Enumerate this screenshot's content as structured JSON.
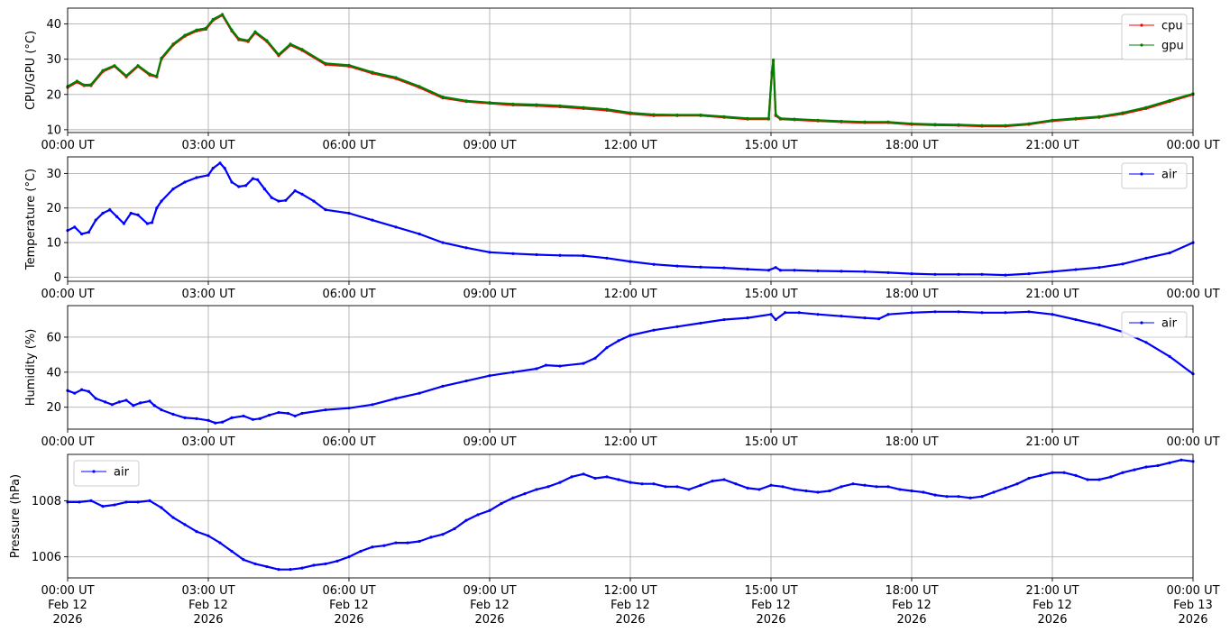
{
  "chart_data": [
    {
      "type": "line",
      "ylabel": "CPU/GPU (°C)",
      "ylim": [
        9.2,
        44.5
      ],
      "yticks": [
        10,
        20,
        30,
        40
      ],
      "xlim": [
        0,
        24
      ],
      "xticks": [
        0,
        3,
        6,
        9,
        12,
        15,
        18,
        21,
        24
      ],
      "xtick_labels": [
        "00:00 UT",
        "03:00 UT",
        "06:00 UT",
        "09:00 UT",
        "12:00 UT",
        "15:00 UT",
        "18:00 UT",
        "21:00 UT",
        "00:00 UT"
      ],
      "grid": true,
      "legend_loc": "upper right",
      "series": [
        {
          "name": "cpu",
          "color": "#ff0000",
          "x": [
            0,
            0.2,
            0.35,
            0.5,
            0.75,
            1.0,
            1.25,
            1.5,
            1.75,
            1.9,
            2.0,
            2.25,
            2.5,
            2.75,
            2.95,
            3.1,
            3.3,
            3.5,
            3.65,
            3.85,
            4.0,
            4.25,
            4.5,
            4.75,
            5.0,
            5.5,
            6.0,
            6.5,
            7.0,
            7.5,
            8.0,
            8.5,
            9.0,
            9.5,
            10.0,
            10.5,
            11.0,
            11.5,
            12.0,
            12.5,
            13.0,
            13.5,
            14.0,
            14.5,
            14.95,
            15.02,
            15.05,
            15.1,
            15.2,
            15.5,
            16.0,
            16.5,
            17.0,
            17.5,
            18.0,
            18.5,
            19.0,
            19.5,
            20.0,
            20.5,
            21.0,
            21.5,
            22.0,
            22.5,
            23.0,
            23.5,
            24.0
          ],
          "y": [
            22,
            23.5,
            22.5,
            22.5,
            26.5,
            28,
            25,
            28,
            25.5,
            25,
            30,
            34,
            36.5,
            38,
            38.5,
            41,
            42.5,
            38,
            35.5,
            35,
            37.5,
            35,
            31,
            34,
            32.5,
            28.5,
            28,
            26,
            24.5,
            22,
            19,
            18,
            17.5,
            17,
            16.8,
            16.5,
            16,
            15.5,
            14.5,
            14,
            14,
            14,
            13.5,
            13,
            13,
            26,
            29.5,
            14,
            13,
            12.8,
            12.5,
            12.2,
            12,
            12,
            11.5,
            11.3,
            11.2,
            11,
            11,
            11.5,
            12.5,
            13,
            13.5,
            14.5,
            16,
            18,
            20
          ]
        },
        {
          "name": "gpu",
          "color": "#008000",
          "x": [
            0,
            0.2,
            0.35,
            0.5,
            0.75,
            1.0,
            1.25,
            1.5,
            1.75,
            1.9,
            2.0,
            2.25,
            2.5,
            2.75,
            2.95,
            3.1,
            3.3,
            3.5,
            3.65,
            3.85,
            4.0,
            4.25,
            4.5,
            4.75,
            5.0,
            5.5,
            6.0,
            6.5,
            7.0,
            7.5,
            8.0,
            8.5,
            9.0,
            9.5,
            10.0,
            10.5,
            11.0,
            11.5,
            12.0,
            12.5,
            13.0,
            13.5,
            14.0,
            14.5,
            14.95,
            15.02,
            15.05,
            15.1,
            15.2,
            15.5,
            16.0,
            16.5,
            17.0,
            17.5,
            18.0,
            18.5,
            19.0,
            19.5,
            20.0,
            20.5,
            21.0,
            21.5,
            22.0,
            22.5,
            23.0,
            23.5,
            24.0
          ],
          "y": [
            22.3,
            23.8,
            22.7,
            22.8,
            26.8,
            28.2,
            25.3,
            28.2,
            25.8,
            25.2,
            30.3,
            34.3,
            36.8,
            38.3,
            38.8,
            41.3,
            42.7,
            38.3,
            35.8,
            35.3,
            37.8,
            35.3,
            31.3,
            34.3,
            32.8,
            28.8,
            28.3,
            26.3,
            24.8,
            22.3,
            19.3,
            18.2,
            17.7,
            17.3,
            17.1,
            16.8,
            16.3,
            15.8,
            14.8,
            14.3,
            14.2,
            14.2,
            13.7,
            13.2,
            13.2,
            26.3,
            29.8,
            14.3,
            13.2,
            13,
            12.7,
            12.4,
            12.2,
            12.2,
            11.7,
            11.5,
            11.4,
            11.2,
            11.2,
            11.7,
            12.7,
            13.2,
            13.7,
            14.8,
            16.3,
            18.3,
            20.2
          ]
        }
      ]
    },
    {
      "type": "line",
      "ylabel": "Temperature (°C)",
      "ylim": [
        -1.2,
        34.8
      ],
      "yticks": [
        0,
        10,
        20,
        30
      ],
      "xlim": [
        0,
        24
      ],
      "xticks": [
        0,
        3,
        6,
        9,
        12,
        15,
        18,
        21,
        24
      ],
      "xtick_labels": [
        "00:00 UT",
        "03:00 UT",
        "06:00 UT",
        "09:00 UT",
        "12:00 UT",
        "15:00 UT",
        "18:00 UT",
        "21:00 UT",
        "00:00 UT"
      ],
      "grid": true,
      "legend_loc": "upper right",
      "series": [
        {
          "name": "air",
          "color": "#0000ff",
          "x": [
            0,
            0.15,
            0.3,
            0.45,
            0.6,
            0.75,
            0.9,
            1.05,
            1.2,
            1.35,
            1.5,
            1.7,
            1.8,
            1.9,
            2.0,
            2.25,
            2.5,
            2.75,
            3.0,
            3.1,
            3.25,
            3.35,
            3.5,
            3.65,
            3.8,
            3.95,
            4.05,
            4.2,
            4.35,
            4.5,
            4.65,
            4.85,
            5.0,
            5.25,
            5.5,
            6.0,
            6.5,
            7.0,
            7.5,
            8.0,
            8.5,
            9.0,
            9.5,
            10.0,
            10.5,
            11.0,
            11.5,
            12.0,
            12.5,
            13.0,
            13.5,
            14.0,
            14.5,
            14.95,
            15.1,
            15.2,
            15.5,
            16.0,
            16.5,
            17.0,
            17.5,
            18.0,
            18.5,
            19.0,
            19.5,
            20.0,
            20.5,
            21.0,
            21.5,
            22.0,
            22.5,
            23.0,
            23.5,
            24.0
          ],
          "y": [
            13.5,
            14.5,
            12.5,
            13,
            16.5,
            18.5,
            19.5,
            17.5,
            15.5,
            18.5,
            18,
            15.5,
            15.8,
            20,
            22,
            25.5,
            27.5,
            28.8,
            29.5,
            31.5,
            33,
            31.5,
            27.5,
            26.2,
            26.5,
            28.5,
            28.2,
            25.5,
            23,
            22,
            22.2,
            25,
            24,
            22,
            19.5,
            18.5,
            16.5,
            14.5,
            12.5,
            10,
            8.5,
            7.2,
            6.8,
            6.5,
            6.3,
            6.2,
            5.5,
            4.5,
            3.7,
            3.2,
            2.9,
            2.7,
            2.3,
            2.0,
            2.8,
            2.0,
            2.0,
            1.8,
            1.7,
            1.6,
            1.3,
            1.0,
            0.8,
            0.8,
            0.8,
            0.6,
            1.0,
            1.6,
            2.2,
            2.8,
            3.8,
            5.5,
            7.0,
            10.0
          ]
        }
      ]
    },
    {
      "type": "line",
      "ylabel": "Humidity (%)",
      "ylim": [
        7.5,
        78
      ],
      "yticks": [
        20,
        40,
        60
      ],
      "xlim": [
        0,
        24
      ],
      "xticks": [
        0,
        3,
        6,
        9,
        12,
        15,
        18,
        21,
        24
      ],
      "xtick_labels": [
        "00:00 UT",
        "03:00 UT",
        "06:00 UT",
        "09:00 UT",
        "12:00 UT",
        "15:00 UT",
        "18:00 UT",
        "21:00 UT",
        "00:00 UT"
      ],
      "grid": true,
      "legend_loc": "upper right",
      "series": [
        {
          "name": "air",
          "color": "#0000ff",
          "x": [
            0,
            0.15,
            0.3,
            0.45,
            0.6,
            0.8,
            0.95,
            1.1,
            1.25,
            1.4,
            1.55,
            1.75,
            1.85,
            2.0,
            2.25,
            2.5,
            2.75,
            3.0,
            3.15,
            3.3,
            3.5,
            3.75,
            3.95,
            4.1,
            4.3,
            4.5,
            4.7,
            4.85,
            5.0,
            5.5,
            6.0,
            6.5,
            7.0,
            7.5,
            8.0,
            8.5,
            9.0,
            9.5,
            10.0,
            10.2,
            10.5,
            11.0,
            11.25,
            11.5,
            11.75,
            12.0,
            12.5,
            13.0,
            13.5,
            14.0,
            14.5,
            15.0,
            15.1,
            15.3,
            15.6,
            16.0,
            16.5,
            17.0,
            17.3,
            17.5,
            18.0,
            18.5,
            19.0,
            19.5,
            20.0,
            20.5,
            21.0,
            21.5,
            22.0,
            22.5,
            23.0,
            23.5,
            24.0
          ],
          "y": [
            29.5,
            28,
            30,
            29,
            25,
            23,
            21.5,
            23,
            24,
            21,
            22.5,
            23.5,
            21,
            18.5,
            16,
            14,
            13.5,
            12.5,
            11,
            11.5,
            14,
            15,
            13,
            13.5,
            15.5,
            17,
            16.5,
            15,
            16.5,
            18.5,
            19.5,
            21.5,
            25,
            28,
            32,
            35,
            38,
            40,
            42,
            44,
            43.5,
            45,
            48,
            54,
            58,
            61,
            64,
            66,
            68,
            70,
            71,
            73,
            70,
            74,
            74,
            73,
            72,
            71,
            70.5,
            73,
            74,
            74.5,
            74.5,
            74,
            74,
            74.5,
            73,
            70,
            67,
            63,
            57,
            49,
            39
          ]
        }
      ]
    },
    {
      "type": "line",
      "ylabel": "Pressure (hPa)",
      "ylim": [
        1005.25,
        1009.65
      ],
      "yticks": [
        1006,
        1008
      ],
      "xlim": [
        0,
        24
      ],
      "xticks": [
        0,
        3,
        6,
        9,
        12,
        15,
        18,
        21,
        24
      ],
      "xtick_labels": [
        "00:00 UT\nFeb 12\n2026",
        "03:00 UT\nFeb 12\n2026",
        "06:00 UT\nFeb 12\n2026",
        "09:00 UT\nFeb 12\n2026",
        "12:00 UT\nFeb 12\n2026",
        "15:00 UT\nFeb 12\n2026",
        "18:00 UT\nFeb 12\n2026",
        "21:00 UT\nFeb 12\n2026",
        "00:00 UT\nFeb 13\n2026"
      ],
      "grid": true,
      "legend_loc": "upper left",
      "series": [
        {
          "name": "air",
          "color": "#0000ff",
          "x": [
            0,
            0.25,
            0.5,
            0.75,
            1.0,
            1.25,
            1.5,
            1.75,
            2.0,
            2.25,
            2.5,
            2.75,
            3.0,
            3.25,
            3.5,
            3.75,
            4.0,
            4.25,
            4.5,
            4.75,
            5.0,
            5.25,
            5.5,
            5.75,
            6.0,
            6.25,
            6.5,
            6.75,
            7.0,
            7.25,
            7.5,
            7.75,
            8.0,
            8.25,
            8.5,
            8.75,
            9.0,
            9.25,
            9.5,
            9.75,
            10.0,
            10.25,
            10.5,
            10.75,
            11.0,
            11.25,
            11.5,
            11.75,
            12.0,
            12.25,
            12.5,
            12.75,
            13.0,
            13.25,
            13.5,
            13.75,
            14.0,
            14.25,
            14.5,
            14.75,
            15.0,
            15.25,
            15.5,
            15.75,
            16.0,
            16.25,
            16.5,
            16.75,
            17.0,
            17.25,
            17.5,
            17.75,
            18.0,
            18.25,
            18.5,
            18.75,
            19.0,
            19.25,
            19.5,
            19.75,
            20.0,
            20.25,
            20.5,
            20.75,
            21.0,
            21.25,
            21.5,
            21.75,
            22.0,
            22.25,
            22.5,
            22.75,
            23.0,
            23.25,
            23.5,
            23.75,
            24.0
          ],
          "y": [
            1007.95,
            1007.95,
            1008.0,
            1007.8,
            1007.85,
            1007.95,
            1007.95,
            1008.0,
            1007.75,
            1007.4,
            1007.15,
            1006.9,
            1006.75,
            1006.5,
            1006.2,
            1005.9,
            1005.75,
            1005.65,
            1005.55,
            1005.55,
            1005.6,
            1005.7,
            1005.75,
            1005.85,
            1006.0,
            1006.2,
            1006.35,
            1006.4,
            1006.5,
            1006.5,
            1006.55,
            1006.7,
            1006.8,
            1007.0,
            1007.3,
            1007.5,
            1007.65,
            1007.9,
            1008.1,
            1008.25,
            1008.4,
            1008.5,
            1008.65,
            1008.85,
            1008.95,
            1008.8,
            1008.85,
            1008.75,
            1008.65,
            1008.6,
            1008.6,
            1008.5,
            1008.5,
            1008.4,
            1008.55,
            1008.7,
            1008.75,
            1008.6,
            1008.45,
            1008.4,
            1008.55,
            1008.5,
            1008.4,
            1008.35,
            1008.3,
            1008.35,
            1008.5,
            1008.6,
            1008.55,
            1008.5,
            1008.5,
            1008.4,
            1008.35,
            1008.3,
            1008.2,
            1008.15,
            1008.15,
            1008.1,
            1008.15,
            1008.3,
            1008.45,
            1008.6,
            1008.8,
            1008.9,
            1009.0,
            1009.0,
            1008.9,
            1008.75,
            1008.75,
            1008.85,
            1009.0,
            1009.1,
            1009.2,
            1009.25,
            1009.35,
            1009.45,
            1009.4
          ]
        }
      ]
    }
  ]
}
